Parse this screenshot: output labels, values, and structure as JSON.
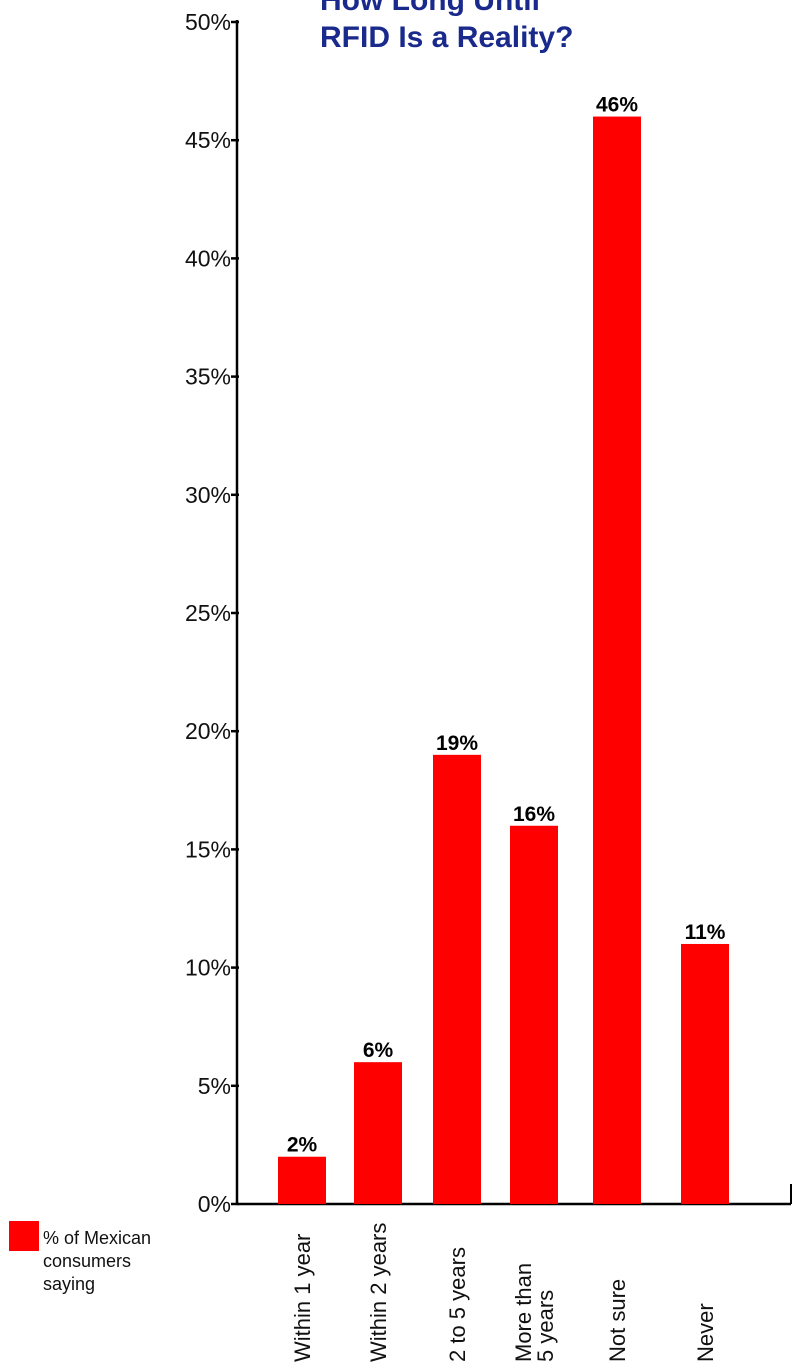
{
  "chart_data": {
    "type": "bar",
    "title_lines": [
      "How Long Until",
      "RFID Is a Reality?"
    ],
    "categories": [
      [
        "Within 1 year"
      ],
      [
        "Within 2 years"
      ],
      [
        "2 to 5 years"
      ],
      [
        "More than",
        "5 years"
      ],
      [
        "Not sure"
      ],
      [
        "Never"
      ]
    ],
    "series": [
      {
        "name": "% of Mexican consumers saying",
        "values": [
          2,
          6,
          19,
          16,
          46,
          11
        ]
      }
    ],
    "data_labels": [
      "2%",
      "6%",
      "19%",
      "16%",
      "46%",
      "11%"
    ],
    "ylim": [
      0,
      50
    ],
    "yticks": [
      0,
      5,
      10,
      15,
      20,
      25,
      30,
      35,
      40,
      45,
      50
    ],
    "ytick_labels": [
      "0%",
      "5%",
      "10%",
      "15%",
      "20%",
      "25%",
      "30%",
      "35%",
      "40%",
      "45%",
      "50%"
    ],
    "legend": {
      "position": "bottom-left",
      "lines": [
        "% of Mexican",
        "consumers",
        "saying"
      ]
    },
    "grid": false,
    "colors": {
      "bar": "#ff0000",
      "title": "#1a2a8c",
      "axis": "#000000"
    }
  }
}
